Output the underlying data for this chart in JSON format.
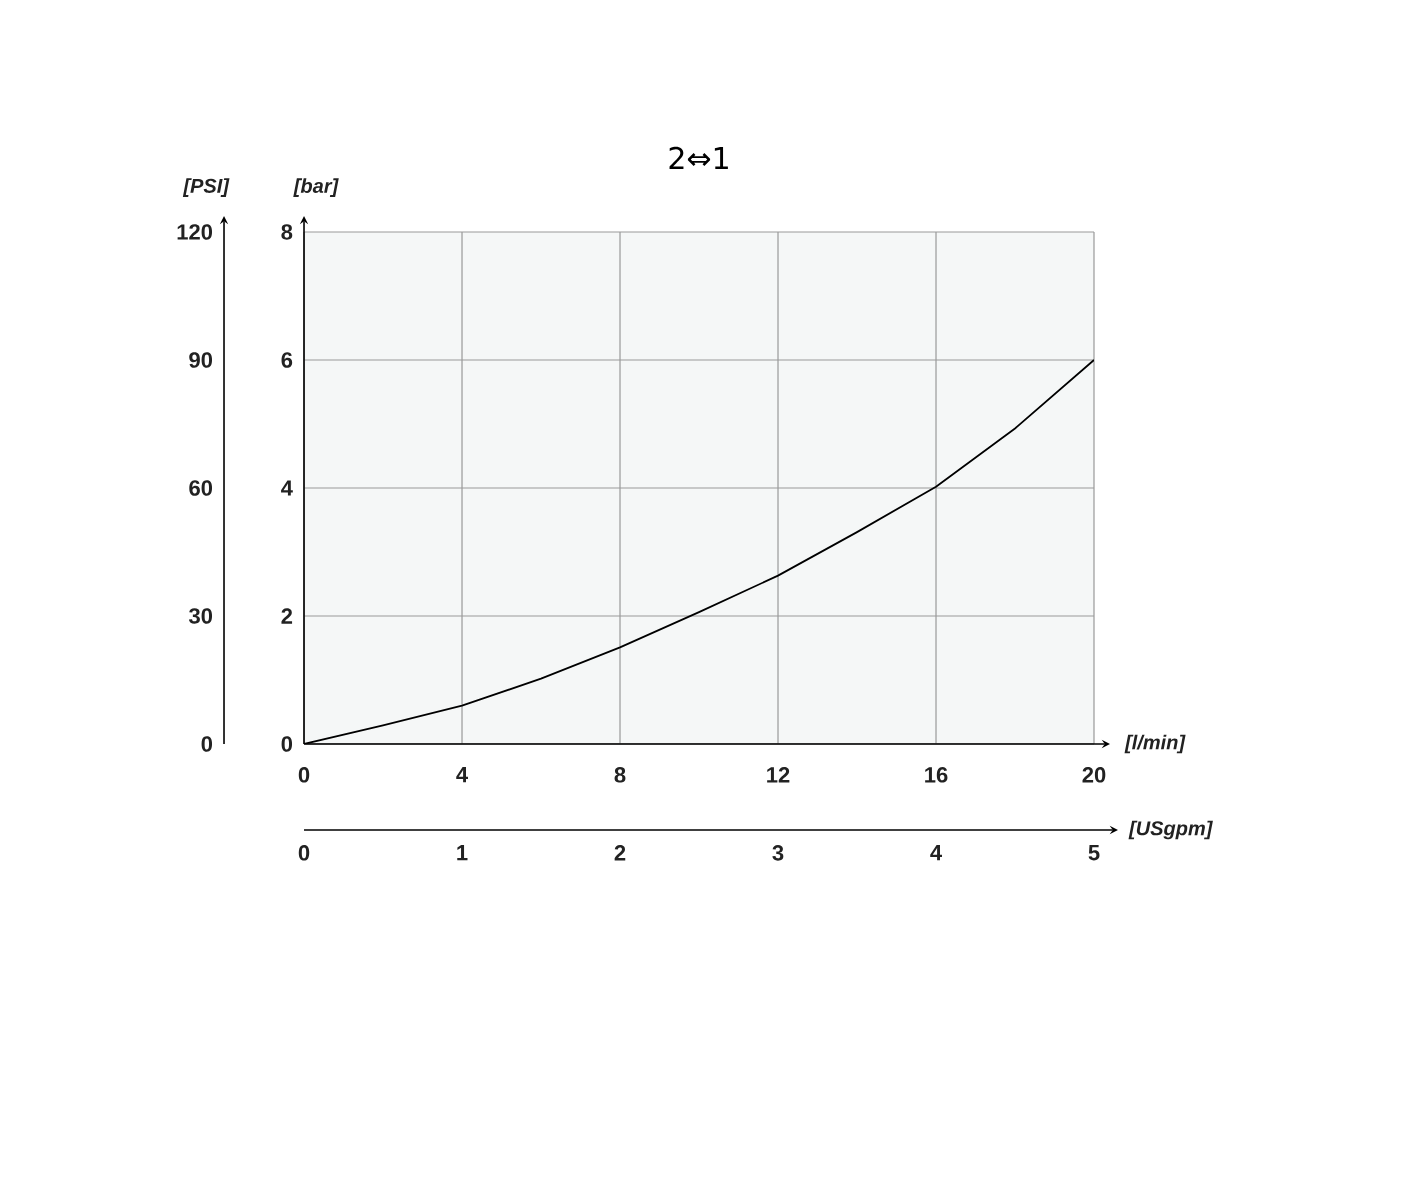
{
  "chart_data": {
    "type": "line",
    "title": "2⇔1",
    "xlabel": "[l/min]",
    "ylabel": "[bar]",
    "y2label": "[PSI]",
    "x2label": "[USgpm]",
    "xlim": [
      0,
      20
    ],
    "xticks": [
      0,
      4,
      8,
      12,
      16,
      20
    ],
    "ylim": [
      0,
      8
    ],
    "yticks": [
      0,
      2,
      4,
      6,
      8
    ],
    "y2lim": [
      0,
      120
    ],
    "y2ticks": [
      0,
      30,
      60,
      90,
      120
    ],
    "x2lim": [
      0,
      5
    ],
    "x2ticks": [
      0,
      1,
      2,
      3,
      4,
      5
    ],
    "grid": true,
    "marker": "none",
    "line_style": "solid",
    "series": [
      {
        "color": "#000000",
        "x": [
          0,
          2,
          4,
          6,
          8,
          10,
          12,
          14,
          16,
          18,
          20
        ],
        "values": [
          0,
          0.29,
          0.6,
          1.02,
          1.51,
          2.06,
          2.63,
          3.31,
          4.02,
          4.93,
          6.0
        ]
      }
    ]
  }
}
